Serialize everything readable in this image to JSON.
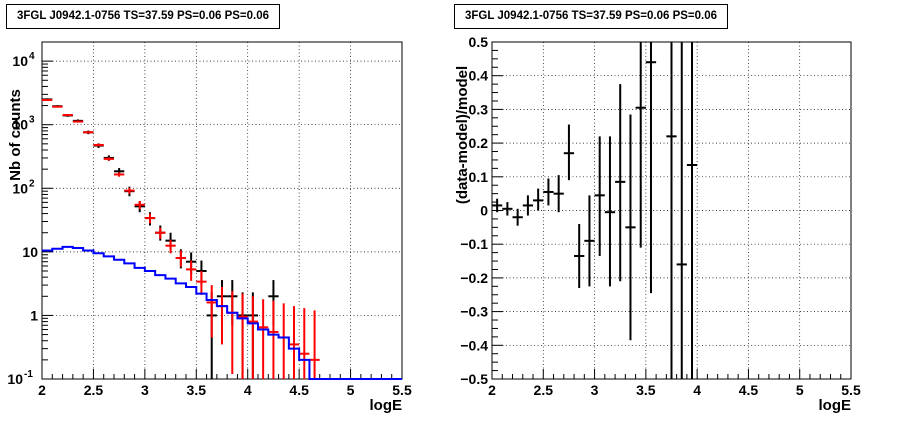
{
  "chart_data": [
    {
      "type": "line",
      "title": "3FGL J0942.1-0756 TS=37.59 PS=0.06 PS=0.06",
      "xlabel": "logE",
      "ylabel": "Nb of counts",
      "xlim": [
        2,
        5.5
      ],
      "ylim": [
        0.1,
        20000
      ],
      "log_y": true,
      "grid": true,
      "x_ticks": [
        "2",
        "2.5",
        "3",
        "3.5",
        "4",
        "4.5",
        "5",
        "5.5"
      ],
      "y_ticks": [
        {
          "value": 0.1,
          "label": "10",
          "sup": "-1"
        },
        {
          "value": 1,
          "label": "1",
          "sup": ""
        },
        {
          "value": 10,
          "label": "10",
          "sup": ""
        },
        {
          "value": 100,
          "label": "10",
          "sup": "2"
        },
        {
          "value": 1000,
          "label": "10",
          "sup": "3"
        },
        {
          "value": 10000,
          "label": "10",
          "sup": "4"
        }
      ],
      "series": [
        {
          "color": "#000000",
          "kind": "errorbar",
          "points": [
            {
              "x": 2.05,
              "y": 2500,
              "lo": 2400,
              "hi": 2600
            },
            {
              "x": 2.15,
              "y": 1950,
              "lo": 1870,
              "hi": 2030
            },
            {
              "x": 2.25,
              "y": 1400,
              "lo": 1330,
              "hi": 1470
            },
            {
              "x": 2.35,
              "y": 1150,
              "lo": 1090,
              "hi": 1210
            },
            {
              "x": 2.45,
              "y": 760,
              "lo": 710,
              "hi": 810
            },
            {
              "x": 2.55,
              "y": 470,
              "lo": 430,
              "hi": 510
            },
            {
              "x": 2.65,
              "y": 300,
              "lo": 270,
              "hi": 330
            },
            {
              "x": 2.75,
              "y": 185,
              "lo": 162,
              "hi": 208
            },
            {
              "x": 2.85,
              "y": 90,
              "lo": 75,
              "hi": 106
            },
            {
              "x": 2.95,
              "y": 52,
              "lo": 42,
              "hi": 63
            },
            {
              "x": 3.05,
              "y": 34,
              "lo": 26,
              "hi": 42
            },
            {
              "x": 3.15,
              "y": 20,
              "lo": 15,
              "hi": 26
            },
            {
              "x": 3.25,
              "y": 15,
              "lo": 11,
              "hi": 20
            },
            {
              "x": 3.35,
              "y": 8,
              "lo": 5.5,
              "hi": 11
            },
            {
              "x": 3.45,
              "y": 7,
              "lo": 4.5,
              "hi": 9.8
            },
            {
              "x": 3.55,
              "y": 5,
              "lo": 3,
              "hi": 7.3
            },
            {
              "x": 3.65,
              "y": 1,
              "lo": 0.1,
              "hi": 2.3
            },
            {
              "x": 3.75,
              "y": 2,
              "lo": 0.7,
              "hi": 3.6
            },
            {
              "x": 3.85,
              "y": 2,
              "lo": 0.7,
              "hi": 3.6
            },
            {
              "x": 3.95,
              "y": 1,
              "lo": 0.1,
              "hi": 2.3
            },
            {
              "x": 4.05,
              "y": 1,
              "lo": 0.1,
              "hi": 2.3
            },
            {
              "x": 4.25,
              "y": 2,
              "lo": 0.7,
              "hi": 3.6
            }
          ]
        },
        {
          "color": "#ff0000",
          "kind": "errorbar",
          "points": [
            {
              "x": 2.05,
              "y": 2450,
              "lo": 2380,
              "hi": 2520
            },
            {
              "x": 2.15,
              "y": 1920,
              "lo": 1860,
              "hi": 1980
            },
            {
              "x": 2.25,
              "y": 1420,
              "lo": 1370,
              "hi": 1470
            },
            {
              "x": 2.35,
              "y": 1120,
              "lo": 1080,
              "hi": 1160
            },
            {
              "x": 2.45,
              "y": 760,
              "lo": 730,
              "hi": 790
            },
            {
              "x": 2.55,
              "y": 480,
              "lo": 455,
              "hi": 505
            },
            {
              "x": 2.65,
              "y": 290,
              "lo": 272,
              "hi": 308
            },
            {
              "x": 2.75,
              "y": 165,
              "lo": 152,
              "hi": 178
            },
            {
              "x": 2.85,
              "y": 92,
              "lo": 82,
              "hi": 102
            },
            {
              "x": 2.95,
              "y": 55,
              "lo": 47,
              "hi": 63
            },
            {
              "x": 3.05,
              "y": 34,
              "lo": 28,
              "hi": 40
            },
            {
              "x": 3.15,
              "y": 20,
              "lo": 16,
              "hi": 24
            },
            {
              "x": 3.25,
              "y": 12.5,
              "lo": 9.5,
              "hi": 15.5
            },
            {
              "x": 3.35,
              "y": 8,
              "lo": 5.8,
              "hi": 10.5
            },
            {
              "x": 3.45,
              "y": 5.3,
              "lo": 3.5,
              "hi": 7.3
            },
            {
              "x": 3.55,
              "y": 3.4,
              "lo": 2.1,
              "hi": 5
            },
            {
              "x": 3.65,
              "y": 1.6,
              "lo": 0.45,
              "hi": 3
            },
            {
              "x": 3.75,
              "y": 1.4,
              "lo": 0.35,
              "hi": 2.8
            },
            {
              "x": 3.85,
              "y": 1.1,
              "lo": 0.12,
              "hi": 2.4
            },
            {
              "x": 3.95,
              "y": 0.95,
              "lo": 0.1,
              "hi": 2.2
            },
            {
              "x": 4.05,
              "y": 0.8,
              "lo": 0.1,
              "hi": 2
            },
            {
              "x": 4.15,
              "y": 0.65,
              "lo": 0.1,
              "hi": 1.8
            },
            {
              "x": 4.25,
              "y": 0.55,
              "lo": 0.1,
              "hi": 1.7
            },
            {
              "x": 4.35,
              "y": 0.45,
              "lo": 0.1,
              "hi": 1.55
            },
            {
              "x": 4.45,
              "y": 0.35,
              "lo": 0.1,
              "hi": 1.4
            },
            {
              "x": 4.55,
              "y": 0.25,
              "lo": 0.1,
              "hi": 1.3
            },
            {
              "x": 4.65,
              "y": 0.2,
              "lo": 0.1,
              "hi": 1.2
            }
          ]
        },
        {
          "color": "#0000ff",
          "kind": "step",
          "bin_width": 0.1,
          "points": [
            {
              "x": 2.05,
              "y": 10.5
            },
            {
              "x": 2.15,
              "y": 11.2
            },
            {
              "x": 2.25,
              "y": 12
            },
            {
              "x": 2.35,
              "y": 11.5
            },
            {
              "x": 2.45,
              "y": 10.5
            },
            {
              "x": 2.55,
              "y": 9.5
            },
            {
              "x": 2.65,
              "y": 8.5
            },
            {
              "x": 2.75,
              "y": 7.5
            },
            {
              "x": 2.85,
              "y": 6.6
            },
            {
              "x": 2.95,
              "y": 5.6
            },
            {
              "x": 3.05,
              "y": 5
            },
            {
              "x": 3.15,
              "y": 4.3
            },
            {
              "x": 3.25,
              "y": 3.8
            },
            {
              "x": 3.35,
              "y": 3.2
            },
            {
              "x": 3.45,
              "y": 2.8
            },
            {
              "x": 3.55,
              "y": 2.2
            },
            {
              "x": 3.65,
              "y": 1.75
            },
            {
              "x": 3.75,
              "y": 1.4
            },
            {
              "x": 3.85,
              "y": 1.1
            },
            {
              "x": 3.95,
              "y": 0.9
            },
            {
              "x": 4.05,
              "y": 0.75
            },
            {
              "x": 4.15,
              "y": 0.6
            },
            {
              "x": 4.25,
              "y": 0.5
            },
            {
              "x": 4.35,
              "y": 0.45
            },
            {
              "x": 4.45,
              "y": 0.3
            },
            {
              "x": 4.55,
              "y": 0.2
            },
            {
              "x": 4.65,
              "y": 0.1
            },
            {
              "x": 4.75,
              "y": 0.1
            },
            {
              "x": 4.85,
              "y": 0.1
            },
            {
              "x": 4.95,
              "y": 0.1
            },
            {
              "x": 5.05,
              "y": 0.1
            },
            {
              "x": 5.15,
              "y": 0.1
            },
            {
              "x": 5.25,
              "y": 0.1
            },
            {
              "x": 5.35,
              "y": 0.1
            },
            {
              "x": 5.45,
              "y": 0.1
            }
          ]
        }
      ]
    },
    {
      "type": "scatter",
      "title": "3FGL J0942.1-0756 TS=37.59 PS=0.06 PS=0.06",
      "xlabel": "logE",
      "ylabel": "(data-model)/model",
      "xlim": [
        2,
        5.5
      ],
      "ylim": [
        -0.5,
        0.5
      ],
      "log_y": false,
      "grid": true,
      "x_ticks": [
        "2",
        "2.5",
        "3",
        "3.5",
        "4",
        "4.5",
        "5",
        "5.5"
      ],
      "y_ticks": [
        {
          "value": -0.5,
          "label": "−0.5",
          "sup": ""
        },
        {
          "value": -0.4,
          "label": "−0.4",
          "sup": ""
        },
        {
          "value": -0.3,
          "label": "−0.3",
          "sup": ""
        },
        {
          "value": -0.2,
          "label": "−0.2",
          "sup": ""
        },
        {
          "value": -0.1,
          "label": "−0.1",
          "sup": ""
        },
        {
          "value": 0,
          "label": "0",
          "sup": ""
        },
        {
          "value": 0.1,
          "label": "0.1",
          "sup": ""
        },
        {
          "value": 0.2,
          "label": "0.2",
          "sup": ""
        },
        {
          "value": 0.3,
          "label": "0.3",
          "sup": ""
        },
        {
          "value": 0.4,
          "label": "0.4",
          "sup": ""
        },
        {
          "value": 0.5,
          "label": "0.5",
          "sup": ""
        }
      ],
      "series": [
        {
          "color": "#000000",
          "kind": "errorbar",
          "points": [
            {
              "x": 2.05,
              "y": 0.015,
              "lo": -0.005,
              "hi": 0.035
            },
            {
              "x": 2.15,
              "y": 0.005,
              "lo": -0.015,
              "hi": 0.025
            },
            {
              "x": 2.25,
              "y": -0.02,
              "lo": -0.045,
              "hi": 0.005
            },
            {
              "x": 2.35,
              "y": 0.015,
              "lo": -0.015,
              "hi": 0.045
            },
            {
              "x": 2.45,
              "y": 0.03,
              "lo": 0.0,
              "hi": 0.065
            },
            {
              "x": 2.55,
              "y": 0.055,
              "lo": 0.015,
              "hi": 0.095
            },
            {
              "x": 2.65,
              "y": 0.05,
              "lo": -0.005,
              "hi": 0.105
            },
            {
              "x": 2.75,
              "y": 0.17,
              "lo": 0.09,
              "hi": 0.255
            },
            {
              "x": 2.85,
              "y": -0.135,
              "lo": -0.23,
              "hi": -0.04
            },
            {
              "x": 2.95,
              "y": -0.09,
              "lo": -0.225,
              "hi": 0.045
            },
            {
              "x": 3.05,
              "y": 0.045,
              "lo": -0.135,
              "hi": 0.22
            },
            {
              "x": 3.15,
              "y": -0.005,
              "lo": -0.225,
              "hi": 0.22
            },
            {
              "x": 3.25,
              "y": 0.085,
              "lo": -0.21,
              "hi": 0.375
            },
            {
              "x": 3.35,
              "y": -0.05,
              "lo": -0.385,
              "hi": 0.285
            },
            {
              "x": 3.45,
              "y": 0.305,
              "lo": -0.11,
              "hi": 0.5
            },
            {
              "x": 3.55,
              "y": 0.44,
              "lo": -0.245,
              "hi": 0.5
            },
            {
              "x": 3.75,
              "y": 0.22,
              "lo": -0.5,
              "hi": 0.5
            },
            {
              "x": 3.85,
              "y": -0.16,
              "lo": -0.5,
              "hi": 0.5
            },
            {
              "x": 3.95,
              "y": 0.135,
              "lo": -0.5,
              "hi": 0.5
            }
          ]
        }
      ]
    }
  ]
}
